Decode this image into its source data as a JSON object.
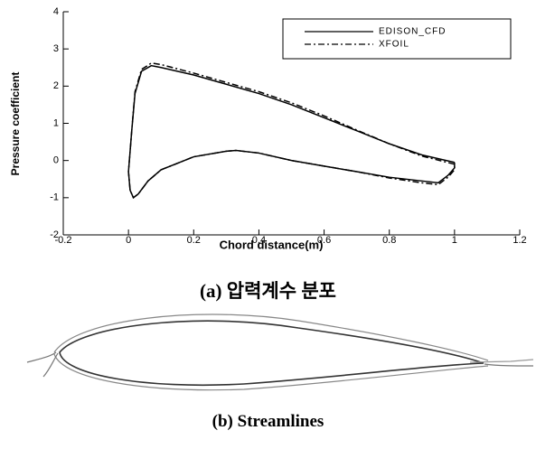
{
  "chart_data": {
    "type": "line",
    "xlabel": "Chord distance(m)",
    "ylabel": "Pressure coefficient",
    "xlim": [
      -0.2,
      1.2
    ],
    "ylim": [
      -2,
      4
    ],
    "xticks": [
      -0.2,
      0,
      0.2,
      0.4,
      0.6,
      0.8,
      1,
      1.2
    ],
    "yticks": [
      -2,
      -1,
      0,
      1,
      2,
      3,
      4
    ],
    "legend": "upper-right",
    "series": [
      {
        "name": "EDISON_CFD",
        "color": "#000000",
        "style": "solid",
        "x": [
          1,
          0.9,
          0.8,
          0.7,
          0.6,
          0.5,
          0.4,
          0.3,
          0.2,
          0.1,
          0.07,
          0.04,
          0.02,
          0.01,
          0.0,
          0.005,
          0.015,
          0.03,
          0.06,
          0.1,
          0.2,
          0.3,
          0.33,
          0.4,
          0.5,
          0.6,
          0.7,
          0.8,
          0.9,
          0.95,
          0.98,
          1.0,
          1.0
        ],
        "values": [
          -0.05,
          0.15,
          0.45,
          0.8,
          1.15,
          1.5,
          1.8,
          2.05,
          2.3,
          2.5,
          2.55,
          2.4,
          1.8,
          0.8,
          -0.3,
          -0.8,
          -1.0,
          -0.9,
          -0.55,
          -0.25,
          0.1,
          0.25,
          0.27,
          0.2,
          0.0,
          -0.15,
          -0.3,
          -0.45,
          -0.55,
          -0.6,
          -0.4,
          -0.2,
          -0.05
        ]
      },
      {
        "name": "XFOIL",
        "color": "#000000",
        "style": "dashdot",
        "x": [
          1,
          0.9,
          0.8,
          0.7,
          0.6,
          0.5,
          0.4,
          0.3,
          0.2,
          0.1,
          0.07,
          0.04,
          0.02,
          0.01,
          0.0,
          0.005,
          0.015,
          0.03,
          0.06,
          0.1,
          0.2,
          0.3,
          0.33,
          0.4,
          0.5,
          0.6,
          0.7,
          0.8,
          0.9,
          0.95,
          0.98,
          1.0,
          1.0
        ],
        "values": [
          -0.1,
          0.12,
          0.45,
          0.82,
          1.2,
          1.55,
          1.85,
          2.1,
          2.35,
          2.58,
          2.62,
          2.45,
          1.85,
          0.8,
          -0.3,
          -0.8,
          -1.0,
          -0.9,
          -0.55,
          -0.25,
          0.1,
          0.25,
          0.27,
          0.2,
          0.0,
          -0.15,
          -0.3,
          -0.47,
          -0.6,
          -0.65,
          -0.45,
          -0.25,
          -0.1
        ]
      }
    ]
  },
  "captions": {
    "a": "(a) 압력계수 분포",
    "b": "(b) Streamlines"
  }
}
